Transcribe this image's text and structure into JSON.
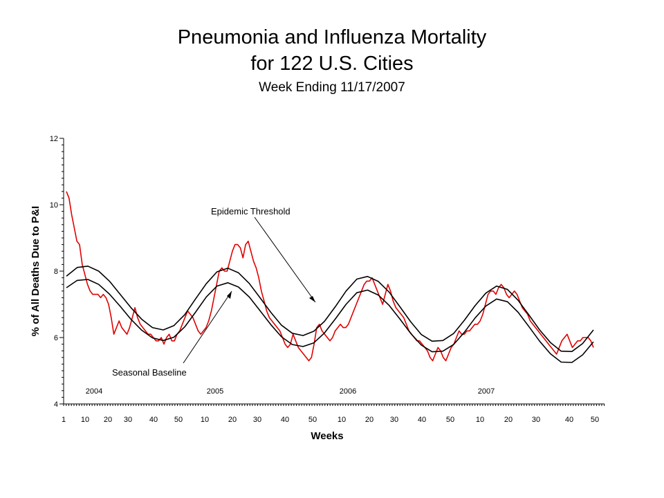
{
  "title_line1": "Pneumonia and Influenza Mortality",
  "title_line2": "for 122 U.S. Cities",
  "subtitle": "Week Ending 11/17/2007",
  "chart_data": {
    "type": "line",
    "title": "Pneumonia and Influenza Mortality for 122 U.S. Cities",
    "subtitle": "Week Ending 11/17/2007",
    "xlabel": "Weeks",
    "ylabel": "% of All Deaths Due to P&I",
    "ylim": [
      4,
      12
    ],
    "y_ticks": [
      4,
      6,
      8,
      10,
      12
    ],
    "x_tick_labels": [
      "1",
      "10",
      "20",
      "30",
      "40",
      "50",
      "10",
      "20",
      "30",
      "40",
      "50",
      "10",
      "20",
      "30",
      "40",
      "50",
      "10",
      "20",
      "30",
      "40",
      "50"
    ],
    "year_labels": [
      "2004",
      "2005",
      "2006",
      "2007"
    ],
    "grid": false,
    "annotations": [
      "Epidemic Threshold",
      "Seasonal Baseline"
    ],
    "colors": {
      "observed": "#e00000",
      "threshold": "#000000",
      "baseline": "#000000"
    },
    "series": [
      {
        "values": [
          10.4,
          10.2,
          9.7,
          9.3,
          8.9,
          8.8,
          8.2,
          7.9,
          7.6,
          7.4,
          7.3,
          7.3,
          7.3,
          7.2,
          7.3,
          7.2,
          7.0,
          6.6,
          6.1,
          6.3,
          6.5,
          6.3,
          6.2,
          6.1,
          6.3,
          6.6,
          6.9,
          6.6,
          6.4,
          6.3,
          6.2,
          6.1,
          6.1,
          6.0,
          5.9,
          5.9,
          6.0,
          5.8,
          6.0,
          6.1,
          5.9,
          5.9,
          6.1,
          6.2,
          6.4,
          6.6,
          6.8,
          6.7,
          6.6,
          6.4,
          6.2,
          6.1,
          6.2,
          6.3,
          6.5,
          6.8,
          7.2,
          7.6,
          8.0,
          8.1,
          8.0,
          8.0,
          8.3,
          8.6,
          8.8,
          8.8,
          8.7,
          8.4,
          8.8,
          8.9,
          8.6,
          8.3,
          8.1,
          7.8,
          7.4,
          7.1,
          6.8,
          6.6,
          6.5,
          6.4,
          6.3,
          6.2,
          6.0,
          5.8,
          5.7,
          5.8,
          6.1,
          5.9,
          5.7,
          5.6,
          5.5,
          5.4,
          5.3,
          5.4,
          5.8,
          6.3,
          6.4,
          6.2,
          6.1,
          6.0,
          5.9,
          6.0,
          6.2,
          6.3,
          6.4,
          6.3,
          6.3,
          6.4,
          6.6,
          6.8,
          7.0,
          7.2,
          7.4,
          7.6,
          7.7,
          7.7,
          7.8,
          7.6,
          7.4,
          7.2,
          7.0,
          7.3,
          7.6,
          7.4,
          7.1,
          6.9,
          6.8,
          6.7,
          6.6,
          6.4,
          6.2,
          6.1,
          6.0,
          5.9,
          5.9,
          5.8,
          5.7,
          5.6,
          5.4,
          5.3,
          5.5,
          5.7,
          5.6,
          5.4,
          5.3,
          5.5,
          5.7,
          5.8,
          6.0,
          6.2,
          6.1,
          6.1,
          6.2,
          6.2,
          6.3,
          6.4,
          6.4,
          6.5,
          6.7,
          7.0,
          7.3,
          7.4,
          7.4,
          7.3,
          7.5,
          7.6,
          7.5,
          7.3,
          7.2,
          7.3,
          7.4,
          7.3,
          7.1,
          6.9,
          6.8,
          6.7,
          6.5,
          6.4,
          6.3,
          6.2,
          6.1,
          6.0,
          5.9,
          5.8,
          5.7,
          5.6,
          5.5,
          5.7,
          5.9,
          6.0,
          6.1,
          5.9,
          5.7,
          5.8,
          5.9,
          5.9,
          6.0,
          6.0,
          6.0,
          5.9,
          5.7
        ]
      },
      {
        "name": "Epidemic Threshold",
        "values": [
          7.85,
          8.11,
          8.15,
          8.0,
          7.7,
          7.3,
          6.9,
          6.55,
          6.3,
          6.23,
          6.36,
          6.69,
          7.16,
          7.62,
          7.98,
          8.09,
          7.95,
          7.63,
          7.2,
          6.76,
          6.37,
          6.13,
          6.06,
          6.19,
          6.49,
          6.93,
          7.4,
          7.76,
          7.84,
          7.69,
          7.37,
          6.93,
          6.48,
          6.09,
          5.89,
          5.91,
          6.12,
          6.52,
          6.96,
          7.34,
          7.55,
          7.45,
          7.12,
          6.68,
          6.23,
          5.85,
          5.59,
          5.58,
          5.82,
          6.23
        ]
      },
      {
        "name": "Seasonal Baseline",
        "values": [
          7.5,
          7.72,
          7.75,
          7.6,
          7.31,
          6.94,
          6.55,
          6.22,
          5.99,
          5.91,
          6.01,
          6.32,
          6.76,
          7.22,
          7.55,
          7.65,
          7.52,
          7.22,
          6.81,
          6.39,
          6.02,
          5.79,
          5.73,
          5.84,
          6.14,
          6.56,
          7.0,
          7.35,
          7.43,
          7.28,
          6.97,
          6.56,
          6.13,
          5.77,
          5.57,
          5.59,
          5.79,
          6.16,
          6.59,
          6.95,
          7.16,
          7.08,
          6.76,
          6.33,
          5.89,
          5.51,
          5.26,
          5.25,
          5.48,
          5.87
        ]
      }
    ]
  }
}
